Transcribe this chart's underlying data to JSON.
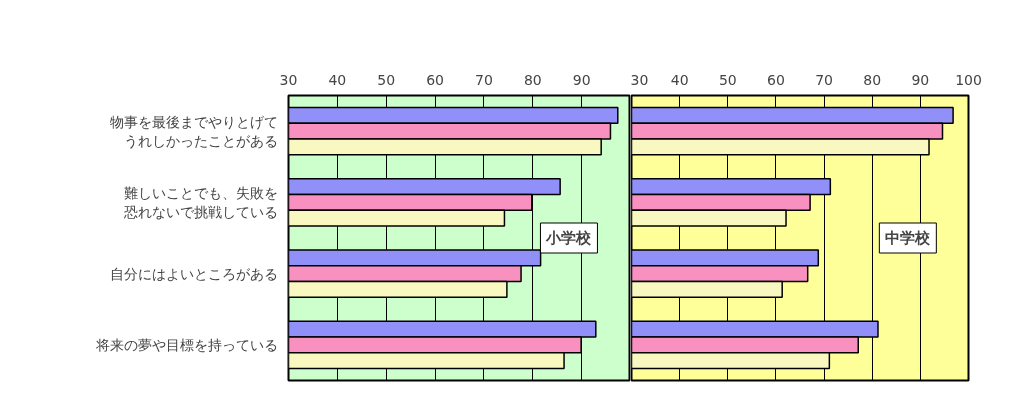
{
  "chart_data": [
    {
      "type": "bar",
      "orientation": "horizontal",
      "categories": [
        "物事を最後までやりとげてうれしかったことがある",
        "難しいことでも、失敗を恐れないで挑戦している",
        "自分にはよいところがある",
        "将来の夢や目標を持っている"
      ],
      "series": [
        {
          "color": "#9090f8",
          "values": [
            97.4,
            85.6,
            81.6,
            92.9
          ]
        },
        {
          "color": "#f890c0",
          "values": [
            95.9,
            79.8,
            77.6,
            89.9
          ]
        },
        {
          "color": "#f8f8c0",
          "values": [
            94.0,
            74.2,
            74.7,
            86.4
          ]
        }
      ],
      "xlim": [
        30,
        100
      ],
      "xticks": [
        30,
        40,
        50,
        60,
        70,
        80,
        90,
        {
          "value": 100,
          "label": null
        }
      ],
      "grid": "x",
      "annotations": [
        "小学校"
      ]
    },
    {
      "type": "bar",
      "orientation": "horizontal",
      "categories": [
        "物事を最後までやりとげてうれしかったことがある",
        "難しいことでも、失敗を恐れないで挑戦している",
        "自分にはよいところがある",
        "将来の夢や目標を持っている"
      ],
      "series": [
        {
          "color": "#9090f8",
          "values": [
            96.8,
            71.3,
            68.8,
            81.2
          ]
        },
        {
          "color": "#f890c0",
          "values": [
            94.6,
            67.1,
            66.6,
            77.1
          ]
        },
        {
          "color": "#f8f8c0",
          "values": [
            91.8,
            62.1,
            61.3,
            71.1
          ]
        }
      ],
      "xlim": [
        30,
        100
      ],
      "xticks": [
        30,
        40,
        50,
        60,
        70,
        80,
        90,
        100
      ],
      "grid": "x",
      "tick_labels": "x",
      "annotations": [
        "中学校"
      ]
    }
  ]
}
